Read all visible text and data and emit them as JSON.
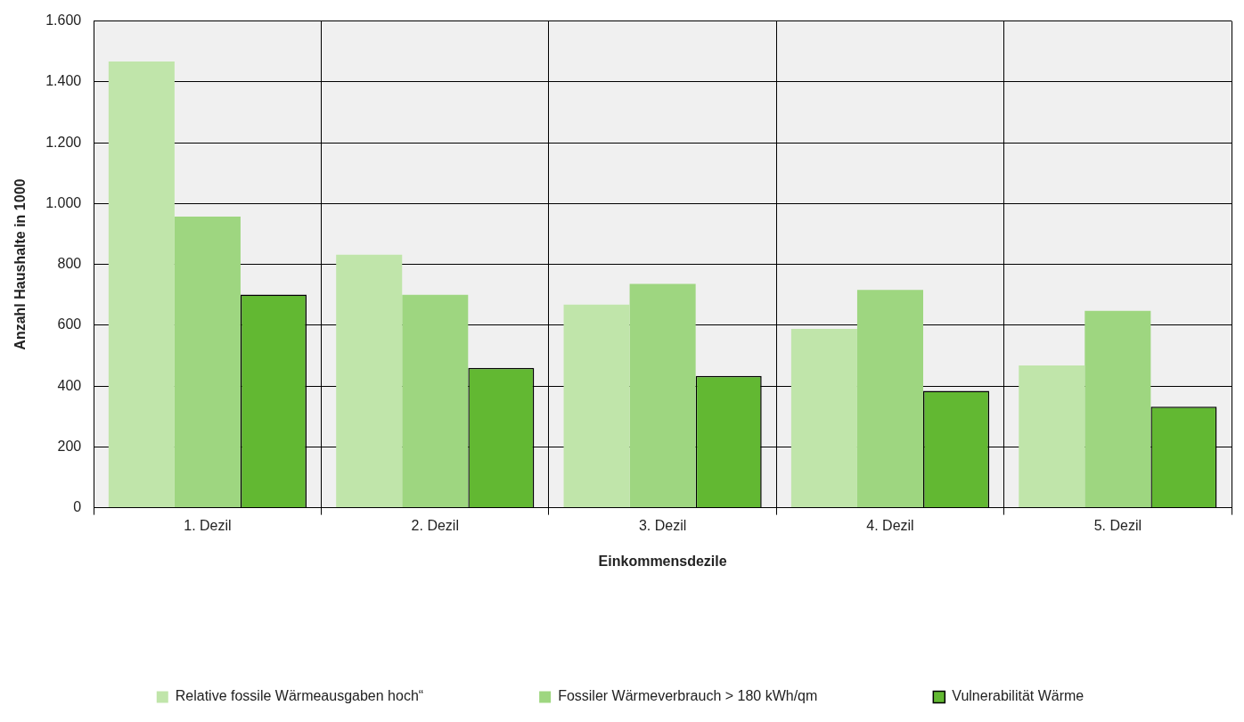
{
  "chart_data": {
    "type": "bar",
    "xlabel": "Einkommensdezile",
    "ylabel": "Anzahl Haushalte in 1000",
    "categories": [
      "1. Dezil",
      "2. Dezil",
      "3. Dezil",
      "4. Dezil",
      "5. Dezil"
    ],
    "series": [
      {
        "name": "Relative fossile Wärmeausgaben hoch“",
        "color": "#c0e5aa",
        "values": [
          1467,
          832,
          668,
          588,
          468
        ]
      },
      {
        "name": "Fossiler Wärmeverbrauch > 180 kWh/qm",
        "color": "#9ed680",
        "values": [
          957,
          700,
          736,
          716,
          647
        ]
      },
      {
        "name": "Vulnerabilität Wärme",
        "color": "#62b832",
        "values": [
          701,
          460,
          433,
          384,
          332
        ]
      }
    ],
    "ylim": [
      0,
      1600
    ],
    "yticks": [
      0,
      200,
      400,
      600,
      800,
      {
        "value": 1000,
        "label": "1.000"
      },
      {
        "value": 1200,
        "label": "1.200"
      },
      {
        "value": 1400,
        "label": "1.400"
      },
      {
        "value": 1600,
        "label": "1.600"
      }
    ],
    "grid": true,
    "legend": "bottom"
  }
}
